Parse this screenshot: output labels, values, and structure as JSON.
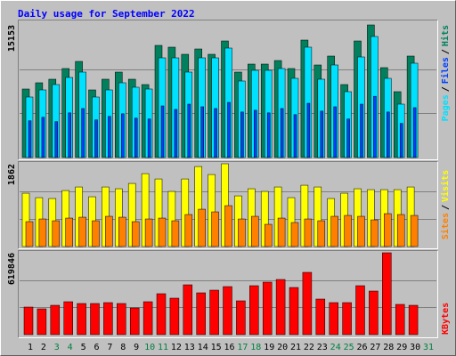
{
  "title": "Daily usage for September 2022",
  "chart_data": [
    {
      "type": "bar",
      "ylim": [
        0,
        15153
      ],
      "yticks": [
        15153
      ],
      "legend_separator": "/",
      "series": [
        {
          "name": "Pages",
          "color": "#00e0ff",
          "values": [
            6916,
            7729,
            8339,
            9153,
            9763,
            6916,
            7729,
            8543,
            8034,
            7831,
            11390,
            11390,
            9763,
            11390,
            11390,
            12509,
            8746,
            9967,
            9967,
            10170,
            9051,
            12611,
            8950,
            10577,
            7526,
            11492,
            13831,
            9051,
            6102,
            10780,
            null
          ]
        },
        {
          "name": "Files",
          "color": "#0040ff",
          "values": [
            4200,
            4600,
            4100,
            5100,
            5600,
            4300,
            4700,
            5000,
            4500,
            4400,
            5900,
            5500,
            6100,
            5800,
            5600,
            6300,
            5200,
            5400,
            5100,
            5600,
            4900,
            6200,
            5300,
            5800,
            4400,
            6100,
            7000,
            5200,
            3900,
            5700,
            null
          ]
        },
        {
          "name": "Hits",
          "color": "#00805c",
          "values": [
            7831,
            8543,
            8950,
            10170,
            10983,
            7729,
            8950,
            9763,
            8950,
            8339,
            12814,
            12611,
            11797,
            12407,
            11797,
            13322,
            9763,
            10678,
            10678,
            11085,
            10170,
            13424,
            10577,
            11594,
            8339,
            13322,
            15153,
            10272,
            7526,
            11594,
            null
          ]
        }
      ]
    },
    {
      "type": "bar",
      "ylim": [
        0,
        1862
      ],
      "yticks": [
        1862
      ],
      "legend_separator": "/",
      "series": [
        {
          "name": "Sites",
          "color": "#ff8000",
          "values": [
            560,
            620,
            580,
            640,
            660,
            580,
            680,
            660,
            560,
            620,
            640,
            580,
            720,
            840,
            780,
            920,
            620,
            680,
            500,
            640,
            540,
            620,
            580,
            680,
            700,
            680,
            600,
            740,
            720,
            700,
            null
          ]
        },
        {
          "name": "Visits",
          "color": "#ffff00",
          "values": [
            1200,
            1100,
            1080,
            1260,
            1340,
            1120,
            1340,
            1300,
            1420,
            1640,
            1520,
            1240,
            1520,
            1800,
            1620,
            1862,
            1140,
            1300,
            1240,
            1340,
            1100,
            1380,
            1340,
            1080,
            1200,
            1300,
            1280,
            1280,
            1280,
            1340,
            null
          ]
        }
      ]
    },
    {
      "type": "bar",
      "ylim": [
        0,
        619846
      ],
      "yticks": [
        619846
      ],
      "categories": [
        "1",
        "2",
        "3",
        "4",
        "5",
        "6",
        "7",
        "8",
        "9",
        "10",
        "11",
        "12",
        "13",
        "14",
        "15",
        "16",
        "17",
        "18",
        "19",
        "20",
        "21",
        "22",
        "23",
        "24",
        "25",
        "26",
        "27",
        "28",
        "29",
        "30",
        "31"
      ],
      "category_colors": [
        "#000000",
        "#000000",
        "#008040",
        "#008040",
        "#000000",
        "#000000",
        "#000000",
        "#000000",
        "#000000",
        "#008040",
        "#008040",
        "#000000",
        "#000000",
        "#000000",
        "#000000",
        "#000000",
        "#008040",
        "#008040",
        "#000000",
        "#000000",
        "#000000",
        "#000000",
        "#000000",
        "#008040",
        "#008040",
        "#000000",
        "#000000",
        "#000000",
        "#000000",
        "#000000",
        "#008040"
      ],
      "series": [
        {
          "name": "KBytes",
          "color": "#ff0000",
          "values": [
            208847,
            195373,
            222321,
            249269,
            235795,
            235795,
            242532,
            235795,
            202110,
            249269,
            309902,
            276217,
            377272,
            316639,
            336850,
            363798,
            256006,
            370535,
            397483,
            417694,
            357061,
            471590,
            269480,
            242532,
            242532,
            370535,
            330113,
            619846,
            229058,
            222321,
            null
          ]
        }
      ]
    }
  ]
}
